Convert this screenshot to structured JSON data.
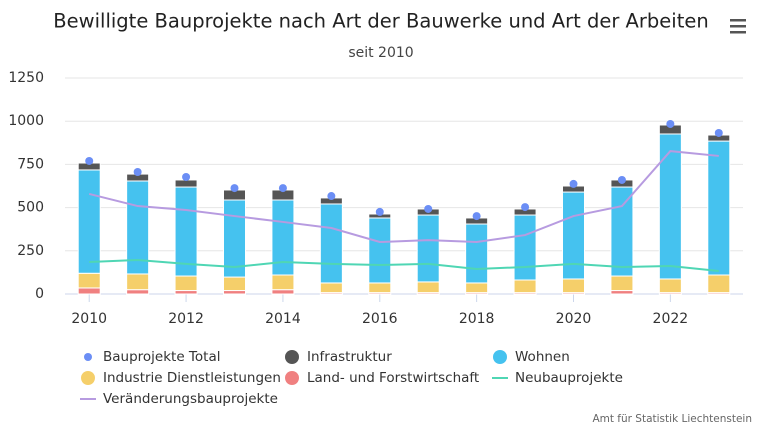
{
  "chart_data": {
    "type": "bar",
    "stacked": true,
    "title": "Bewilligte Bauprojekte nach Art der Bauwerke und Art der Arbeiten",
    "subtitle": "seit 2010",
    "credit": "Amt für Statistik Liechtenstein",
    "x": [
      2010,
      2011,
      2012,
      2013,
      2014,
      2015,
      2016,
      2017,
      2018,
      2019,
      2020,
      2021,
      2022,
      2023
    ],
    "xlim": [
      2009.5,
      2023.5
    ],
    "xticks": [
      2010,
      2012,
      2014,
      2016,
      2018,
      2020,
      2022
    ],
    "ylim": [
      0,
      1250
    ],
    "yticks": [
      0,
      250,
      500,
      750,
      1000,
      1250
    ],
    "grid": true,
    "series": [
      {
        "name": "Bauprojekte Total",
        "type": "scatter",
        "color": "#6b8ef5",
        "values": [
          770,
          706,
          677,
          613,
          613,
          567,
          475,
          492,
          451,
          503,
          637,
          660,
          984,
          932
        ]
      },
      {
        "name": "Infrastruktur",
        "type": "column",
        "color": "#555555",
        "values": [
          40,
          40,
          41,
          58,
          58,
          35,
          23,
          35,
          35,
          35,
          35,
          41,
          52,
          35
        ]
      },
      {
        "name": "Wohnen",
        "type": "column",
        "color": "#45c2ef",
        "values": [
          598,
          538,
          515,
          446,
          434,
          457,
          376,
          387,
          341,
          376,
          503,
          515,
          839,
          775
        ]
      },
      {
        "name": "Industrie Dienstleistungen",
        "type": "column",
        "color": "#f5cf6a",
        "values": [
          85,
          91,
          84,
          78,
          85,
          56,
          56,
          62,
          56,
          73,
          79,
          84,
          79,
          102
        ]
      },
      {
        "name": "Land- und Forstwirtschaft",
        "type": "column",
        "color": "#f08080",
        "values": [
          35,
          25,
          20,
          20,
          25,
          8,
          8,
          8,
          8,
          8,
          8,
          20,
          8,
          8
        ]
      },
      {
        "name": "Neubauprojekte",
        "type": "line",
        "color": "#4fd6b4",
        "values": [
          185,
          197,
          174,
          156,
          185,
          174,
          168,
          174,
          145,
          156,
          174,
          156,
          162,
          133
        ]
      },
      {
        "name": "Veränderungsbauprojekte",
        "type": "line",
        "color": "#b79be0",
        "values": [
          579,
          509,
          486,
          451,
          417,
          382,
          301,
          312,
          301,
          341,
          451,
          509,
          827,
          799
        ]
      }
    ]
  }
}
